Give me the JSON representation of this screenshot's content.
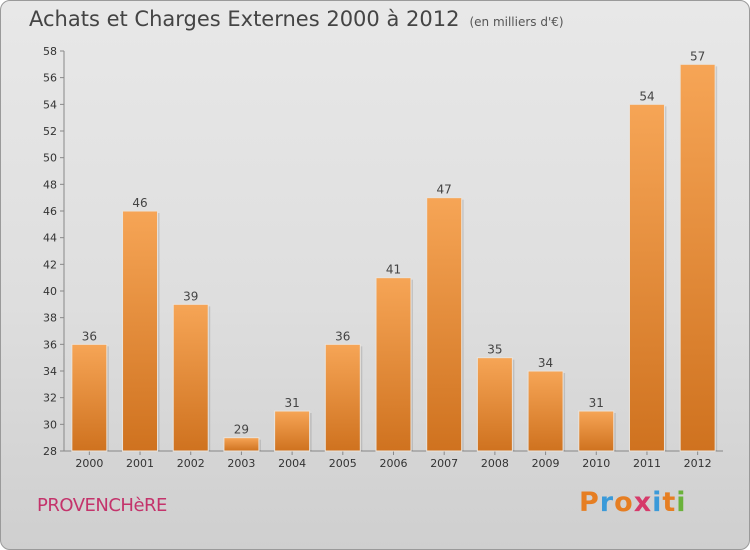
{
  "chart_data": {
    "type": "bar",
    "title": "Achats et Charges Externes 2000 à 2012",
    "subtitle": "(en milliers d'€)",
    "xlabel": "",
    "ylabel": "",
    "categories": [
      "2000",
      "2001",
      "2002",
      "2003",
      "2004",
      "2005",
      "2006",
      "2007",
      "2008",
      "2009",
      "2010",
      "2011",
      "2012"
    ],
    "values": [
      36,
      46,
      39,
      29,
      31,
      36,
      41,
      47,
      35,
      34,
      31,
      54,
      57
    ],
    "ylim": [
      28,
      58
    ],
    "yticks": [
      28,
      30,
      32,
      34,
      36,
      38,
      40,
      42,
      44,
      46,
      48,
      50,
      52,
      54,
      56,
      58
    ],
    "grid": false,
    "colors": {
      "bar_light": "#f6a556",
      "bar_dark": "#cf721f"
    }
  },
  "footer": {
    "commune": "PROVENCHèRE",
    "logo": [
      "P",
      "r",
      "o",
      "x",
      "i",
      "t",
      "i"
    ],
    "logo_colors": [
      "#e67e22",
      "#3a9ad9",
      "#e67e22",
      "#d63a6a",
      "#3a9ad9",
      "#e67e22",
      "#6ab23a"
    ]
  }
}
